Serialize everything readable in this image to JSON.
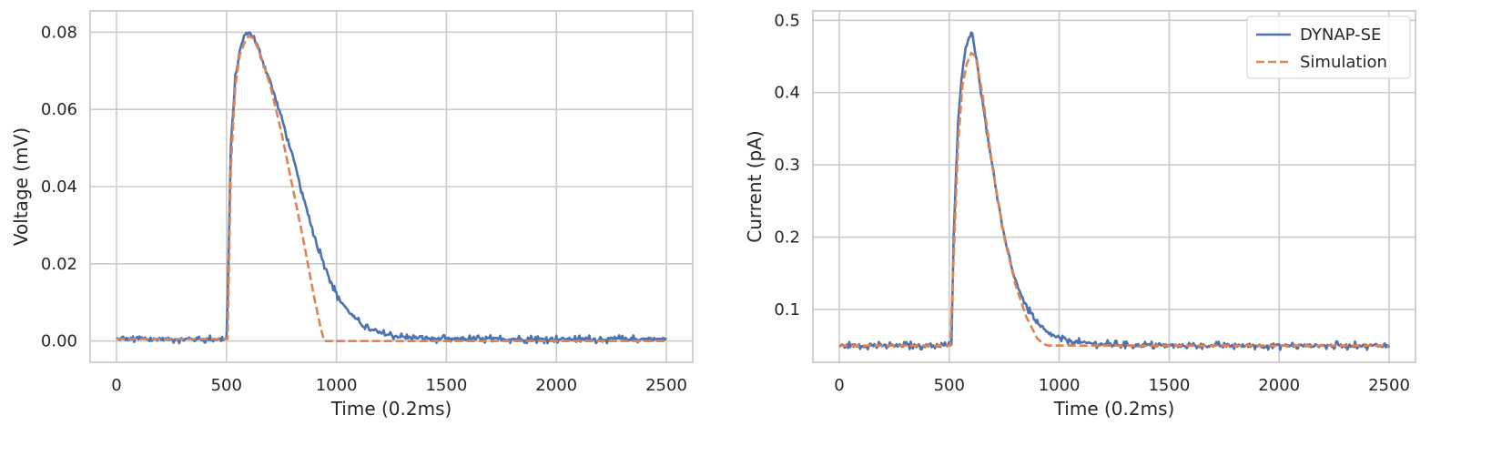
{
  "chart_data": [
    {
      "type": "line",
      "xlabel": "Time (0.2ms)",
      "ylabel": "Voltage (mV)",
      "xlim": [
        -120,
        2620
      ],
      "ylim": [
        -0.0055,
        0.0855
      ],
      "x_ticks": [
        0,
        500,
        1000,
        1500,
        2000,
        2500
      ],
      "x_tick_labels": [
        "0",
        "500",
        "1000",
        "1500",
        "2000",
        "2500"
      ],
      "y_ticks": [
        0.0,
        0.02,
        0.04,
        0.06,
        0.08
      ],
      "y_tick_labels": [
        "0.00",
        "0.02",
        "0.04",
        "0.06",
        "0.08"
      ],
      "grid": true,
      "series": [
        {
          "name": "DYNAP-SE",
          "color": "#4c72b0",
          "style": "solid",
          "x": [
            0,
            100,
            200,
            300,
            400,
            500,
            505,
            520,
            540,
            560,
            580,
            600,
            620,
            650,
            700,
            750,
            800,
            850,
            900,
            950,
            1000,
            1050,
            1100,
            1150,
            1200,
            1300,
            1400,
            1500,
            2000,
            2500
          ],
          "y": [
            0.0005,
            0.0005,
            0.0005,
            0.0005,
            0.0005,
            0.0005,
            0.01,
            0.05,
            0.068,
            0.075,
            0.079,
            0.08,
            0.079,
            0.075,
            0.067,
            0.058,
            0.048,
            0.037,
            0.027,
            0.019,
            0.012,
            0.008,
            0.005,
            0.003,
            0.002,
            0.001,
            0.0007,
            0.0005,
            0.0005,
            0.0005
          ]
        },
        {
          "name": "Simulation",
          "color": "#dd8452",
          "style": "dashed",
          "x": [
            0,
            505,
            520,
            540,
            560,
            580,
            600,
            620,
            650,
            700,
            750,
            800,
            850,
            900,
            930,
            945,
            1000,
            1500,
            2000,
            2500
          ],
          "y": [
            0.0005,
            0.0005,
            0.045,
            0.066,
            0.074,
            0.077,
            0.079,
            0.0785,
            0.075,
            0.066,
            0.054,
            0.04,
            0.026,
            0.011,
            0.003,
            0.0,
            0.0,
            0.0,
            0.0,
            0.0
          ]
        }
      ]
    },
    {
      "type": "line",
      "xlabel": "Time (0.2ms)",
      "ylabel": "Current (pA)",
      "xlim": [
        -120,
        2620
      ],
      "ylim": [
        0.027,
        0.513
      ],
      "x_ticks": [
        0,
        500,
        1000,
        1500,
        2000,
        2500
      ],
      "x_tick_labels": [
        "0",
        "500",
        "1000",
        "1500",
        "2000",
        "2500"
      ],
      "y_ticks": [
        0.1,
        0.2,
        0.3,
        0.4,
        0.5
      ],
      "y_tick_labels": [
        "0.1",
        "0.2",
        "0.3",
        "0.4",
        "0.5"
      ],
      "grid": true,
      "legend_position": "top-right",
      "series": [
        {
          "name": "DYNAP-SE",
          "color": "#4c72b0",
          "style": "solid",
          "x": [
            0,
            500,
            510,
            520,
            540,
            560,
            580,
            600,
            610,
            620,
            650,
            700,
            750,
            800,
            850,
            900,
            950,
            1000,
            1100,
            1200,
            1300,
            1500,
            2000,
            2500
          ],
          "y": [
            0.05,
            0.05,
            0.05,
            0.2,
            0.36,
            0.43,
            0.47,
            0.485,
            0.47,
            0.455,
            0.39,
            0.29,
            0.2,
            0.14,
            0.105,
            0.08,
            0.067,
            0.06,
            0.054,
            0.052,
            0.051,
            0.05,
            0.05,
            0.05
          ]
        },
        {
          "name": "Simulation",
          "color": "#dd8452",
          "style": "dashed",
          "x": [
            0,
            505,
            520,
            540,
            560,
            580,
            600,
            620,
            650,
            700,
            750,
            800,
            850,
            900,
            930,
            950,
            1000,
            1500,
            2000,
            2500
          ],
          "y": [
            0.05,
            0.05,
            0.17,
            0.33,
            0.41,
            0.44,
            0.455,
            0.45,
            0.4,
            0.29,
            0.2,
            0.135,
            0.09,
            0.06,
            0.052,
            0.05,
            0.05,
            0.05,
            0.05,
            0.05
          ]
        }
      ]
    }
  ],
  "legend": {
    "position": "top-right",
    "entries": [
      {
        "label": "DYNAP-SE",
        "color": "#4c72b0",
        "style": "solid"
      },
      {
        "label": "Simulation",
        "color": "#dd8452",
        "style": "dashed"
      }
    ]
  },
  "colors": {
    "grid": "#cccccc",
    "spine": "#cccccc",
    "text": "#262626",
    "background": "#ffffff"
  }
}
